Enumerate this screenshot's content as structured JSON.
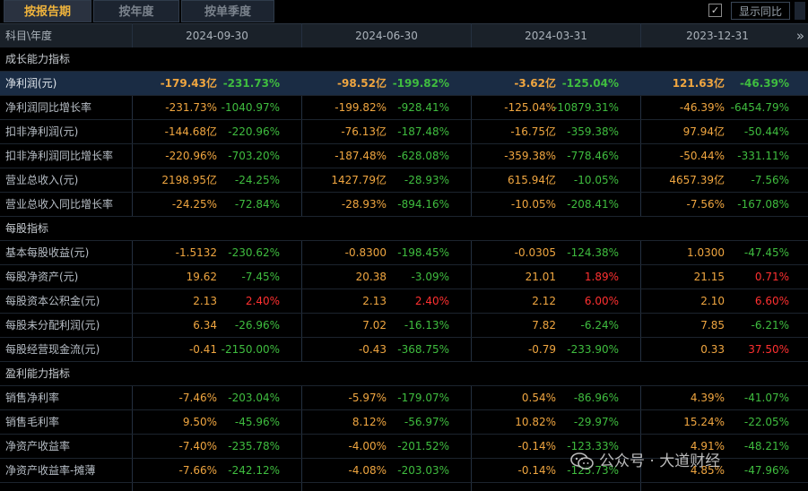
{
  "tabs": [
    {
      "label": "按报告期",
      "active": true
    },
    {
      "label": "按年度",
      "active": false
    },
    {
      "label": "按单季度",
      "active": false
    }
  ],
  "options": {
    "yoy_label": "显示同比",
    "yoy_checked": true
  },
  "header": {
    "corner": "科目\\年度",
    "dates": [
      "2024-09-30",
      "2024-06-30",
      "2024-03-31",
      "2023-12-31"
    ],
    "more_icon": "»"
  },
  "rows": [
    {
      "label": "成长能力指标",
      "section": true
    },
    {
      "label": "净利润(元)",
      "highlight": true,
      "cells": [
        {
          "v": "-179.43亿",
          "y": "-231.73%",
          "yc": "green"
        },
        {
          "v": "-98.52亿",
          "y": "-199.82%",
          "yc": "green"
        },
        {
          "v": "-3.62亿",
          "y": "-125.04%",
          "yc": "green"
        },
        {
          "v": "121.63亿",
          "y": "-46.39%",
          "yc": "green"
        }
      ]
    },
    {
      "label": "净利润同比增长率",
      "cells": [
        {
          "v": "-231.73%",
          "y": "-1040.97%",
          "yc": "green"
        },
        {
          "v": "-199.82%",
          "y": "-928.41%",
          "yc": "green"
        },
        {
          "v": "-125.04%",
          "y": "-10879.31%",
          "yc": "green"
        },
        {
          "v": "-46.39%",
          "y": "-6454.79%",
          "yc": "green"
        }
      ]
    },
    {
      "label": "扣非净利润(元)",
      "cells": [
        {
          "v": "-144.68亿",
          "y": "-220.96%",
          "yc": "green"
        },
        {
          "v": "-76.13亿",
          "y": "-187.48%",
          "yc": "green"
        },
        {
          "v": "-16.75亿",
          "y": "-359.38%",
          "yc": "green"
        },
        {
          "v": "97.94亿",
          "y": "-50.44%",
          "yc": "green"
        }
      ]
    },
    {
      "label": "扣非净利润同比增长率",
      "cells": [
        {
          "v": "-220.96%",
          "y": "-703.20%",
          "yc": "green"
        },
        {
          "v": "-187.48%",
          "y": "-628.08%",
          "yc": "green"
        },
        {
          "v": "-359.38%",
          "y": "-778.46%",
          "yc": "green"
        },
        {
          "v": "-50.44%",
          "y": "-331.11%",
          "yc": "green"
        }
      ]
    },
    {
      "label": "营业总收入(元)",
      "cells": [
        {
          "v": "2198.95亿",
          "y": "-24.25%",
          "yc": "green"
        },
        {
          "v": "1427.79亿",
          "y": "-28.93%",
          "yc": "green"
        },
        {
          "v": "615.94亿",
          "y": "-10.05%",
          "yc": "green"
        },
        {
          "v": "4657.39亿",
          "y": "-7.56%",
          "yc": "green"
        }
      ]
    },
    {
      "label": "营业总收入同比增长率",
      "cells": [
        {
          "v": "-24.25%",
          "y": "-72.84%",
          "yc": "green"
        },
        {
          "v": "-28.93%",
          "y": "-894.16%",
          "yc": "green"
        },
        {
          "v": "-10.05%",
          "y": "-208.41%",
          "yc": "green"
        },
        {
          "v": "-7.56%",
          "y": "-167.08%",
          "yc": "green"
        }
      ]
    },
    {
      "label": "每股指标",
      "section": true
    },
    {
      "label": "基本每股收益(元)",
      "cells": [
        {
          "v": "-1.5132",
          "y": "-230.62%",
          "yc": "green"
        },
        {
          "v": "-0.8300",
          "y": "-198.45%",
          "yc": "green"
        },
        {
          "v": "-0.0305",
          "y": "-124.38%",
          "yc": "green"
        },
        {
          "v": "1.0300",
          "y": "-47.45%",
          "yc": "green"
        }
      ]
    },
    {
      "label": "每股净资产(元)",
      "cells": [
        {
          "v": "19.62",
          "y": "-7.45%",
          "yc": "green"
        },
        {
          "v": "20.38",
          "y": "-3.09%",
          "yc": "green"
        },
        {
          "v": "21.01",
          "y": "1.89%",
          "yc": "red"
        },
        {
          "v": "21.15",
          "y": "0.71%",
          "yc": "red"
        }
      ]
    },
    {
      "label": "每股资本公积金(元)",
      "cells": [
        {
          "v": "2.13",
          "y": "2.40%",
          "yc": "red"
        },
        {
          "v": "2.13",
          "y": "2.40%",
          "yc": "red"
        },
        {
          "v": "2.12",
          "y": "6.00%",
          "yc": "red"
        },
        {
          "v": "2.10",
          "y": "6.60%",
          "yc": "red"
        }
      ]
    },
    {
      "label": "每股未分配利润(元)",
      "cells": [
        {
          "v": "6.34",
          "y": "-26.96%",
          "yc": "green"
        },
        {
          "v": "7.02",
          "y": "-16.13%",
          "yc": "green"
        },
        {
          "v": "7.82",
          "y": "-6.24%",
          "yc": "green"
        },
        {
          "v": "7.85",
          "y": "-6.21%",
          "yc": "green"
        }
      ]
    },
    {
      "label": "每股经营现金流(元)",
      "cells": [
        {
          "v": "-0.41",
          "y": "-2150.00%",
          "yc": "green"
        },
        {
          "v": "-0.43",
          "y": "-368.75%",
          "yc": "green"
        },
        {
          "v": "-0.79",
          "y": "-233.90%",
          "yc": "green"
        },
        {
          "v": "0.33",
          "y": "37.50%",
          "yc": "red"
        }
      ]
    },
    {
      "label": "盈利能力指标",
      "section": true
    },
    {
      "label": "销售净利率",
      "cells": [
        {
          "v": "-7.46%",
          "y": "-203.04%",
          "yc": "green"
        },
        {
          "v": "-5.97%",
          "y": "-179.07%",
          "yc": "green"
        },
        {
          "v": "0.54%",
          "y": "-86.96%",
          "yc": "green"
        },
        {
          "v": "4.39%",
          "y": "-41.07%",
          "yc": "green"
        }
      ]
    },
    {
      "label": "销售毛利率",
      "cells": [
        {
          "v": "9.50%",
          "y": "-45.96%",
          "yc": "green"
        },
        {
          "v": "8.12%",
          "y": "-56.97%",
          "yc": "green"
        },
        {
          "v": "10.82%",
          "y": "-29.97%",
          "yc": "green"
        },
        {
          "v": "15.24%",
          "y": "-22.05%",
          "yc": "green"
        }
      ]
    },
    {
      "label": "净资产收益率",
      "cells": [
        {
          "v": "-7.40%",
          "y": "-235.78%",
          "yc": "green"
        },
        {
          "v": "-4.00%",
          "y": "-201.52%",
          "yc": "green"
        },
        {
          "v": "-0.14%",
          "y": "-123.33%",
          "yc": "green"
        },
        {
          "v": "4.91%",
          "y": "-48.21%",
          "yc": "green"
        }
      ]
    },
    {
      "label": "净资产收益率-摊薄",
      "cells": [
        {
          "v": "-7.66%",
          "y": "-242.12%",
          "yc": "green"
        },
        {
          "v": "-4.08%",
          "y": "-203.03%",
          "yc": "green"
        },
        {
          "v": "-0.14%",
          "y": "-125.73%",
          "yc": "green"
        },
        {
          "v": "4.85%",
          "y": "-47.96%",
          "yc": "green"
        }
      ]
    }
  ],
  "watermark": {
    "text": "公众号 · 大道财经"
  },
  "colors": {
    "value": "#f0a640",
    "down": "#3fbd3f",
    "up": "#ff3030",
    "highlight_bg": "#1a2c44"
  }
}
